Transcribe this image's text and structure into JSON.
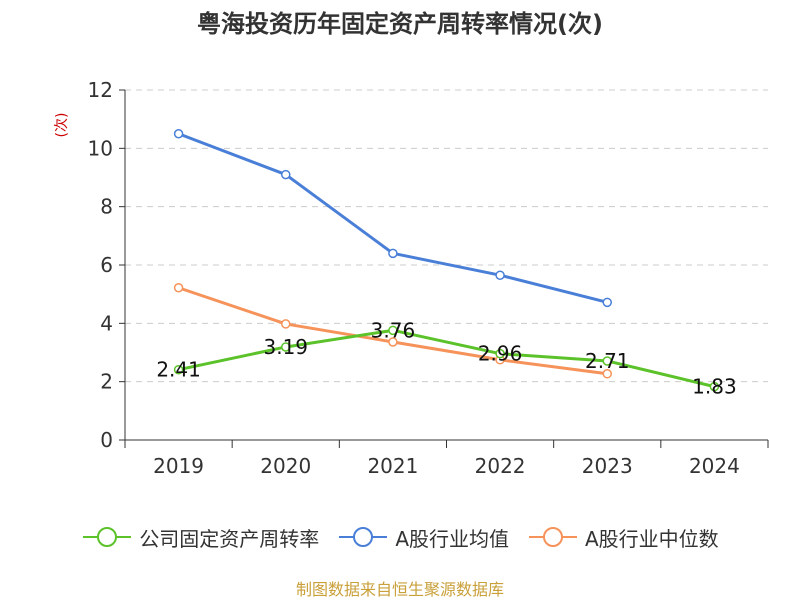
{
  "title": "粤海投资历年固定资产周转率情况(次)",
  "source": "制图数据来自恒生聚源数据库",
  "chart_data": {
    "type": "line",
    "title": "粤海投资历年固定资产周转率情况(次)",
    "xlabel": "",
    "ylabel": "(次)",
    "ylim": [
      0,
      12
    ],
    "yticks": [
      0,
      2,
      4,
      6,
      8,
      10,
      12
    ],
    "categories": [
      "2019",
      "2020",
      "2021",
      "2022",
      "2023",
      "2024"
    ],
    "grid": true,
    "legend_position": "bottom",
    "series": [
      {
        "name": "公司固定资产周转率",
        "color": "#5cc22a",
        "values": [
          2.41,
          3.19,
          3.76,
          2.96,
          2.71,
          1.83
        ],
        "labels": [
          "2.41",
          "3.19",
          "3.76",
          "2.96",
          "2.71",
          "1.83"
        ]
      },
      {
        "name": "A股行业均值",
        "color": "#4a7fd8",
        "values": [
          10.5,
          9.1,
          6.4,
          5.65,
          4.72,
          null
        ]
      },
      {
        "name": "A股行业中位数",
        "color": "#f5935a",
        "values": [
          5.22,
          3.98,
          3.36,
          2.75,
          2.27,
          null
        ]
      }
    ]
  }
}
